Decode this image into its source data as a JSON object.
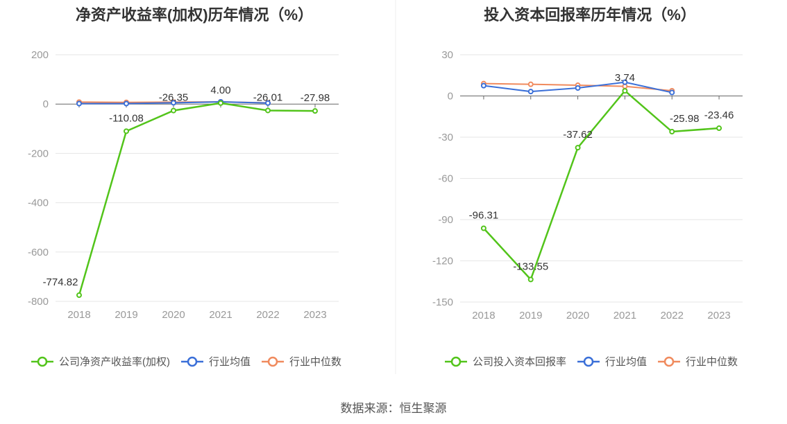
{
  "colors": {
    "company": "#52c41a",
    "avg": "#3a6fd8",
    "median": "#f08a5d",
    "grid": "#e6e6e6",
    "axis": "#666666"
  },
  "source_text": "数据来源：恒生聚源",
  "chart_data": [
    {
      "type": "line",
      "title": "净资产收益率(加权)历年情况（%）",
      "categories": [
        "2018",
        "2019",
        "2020",
        "2021",
        "2022",
        "2023"
      ],
      "ylim": [
        -800,
        200
      ],
      "yticks": [
        200,
        0,
        -200,
        -400,
        -600,
        -800
      ],
      "series": [
        {
          "name": "公司净资产收益率(加权)",
          "key": "company",
          "values": [
            -774.82,
            -110.08,
            -26.35,
            4.0,
            -26.01,
            -27.98
          ],
          "labels": [
            "-774.82",
            "-110.08",
            "-26.35",
            "4.00",
            "-26.01",
            "-27.98"
          ]
        },
        {
          "name": "行业均值",
          "key": "avg",
          "values": [
            2,
            2,
            5,
            9,
            4,
            null
          ]
        },
        {
          "name": "行业中位数",
          "key": "median",
          "values": [
            8,
            7,
            8,
            9,
            5,
            null
          ]
        }
      ]
    },
    {
      "type": "line",
      "title": "投入资本回报率历年情况（%）",
      "categories": [
        "2018",
        "2019",
        "2020",
        "2021",
        "2022",
        "2023"
      ],
      "ylim": [
        -150,
        30
      ],
      "yticks": [
        30,
        0,
        -30,
        -60,
        -90,
        -120,
        -150
      ],
      "series": [
        {
          "name": "公司投入资本回报率",
          "key": "company",
          "values": [
            -96.31,
            -133.55,
            -37.62,
            3.74,
            -25.98,
            -23.46
          ],
          "labels": [
            "-96.31",
            "-133.55",
            "-37.62",
            "3.74",
            "-25.98",
            "-23.46"
          ]
        },
        {
          "name": "行业均值",
          "key": "avg",
          "values": [
            7.5,
            3.2,
            5.8,
            10,
            2.5,
            null
          ]
        },
        {
          "name": "行业中位数",
          "key": "median",
          "values": [
            9,
            8.5,
            7.8,
            7,
            3.8,
            null
          ]
        }
      ]
    }
  ]
}
